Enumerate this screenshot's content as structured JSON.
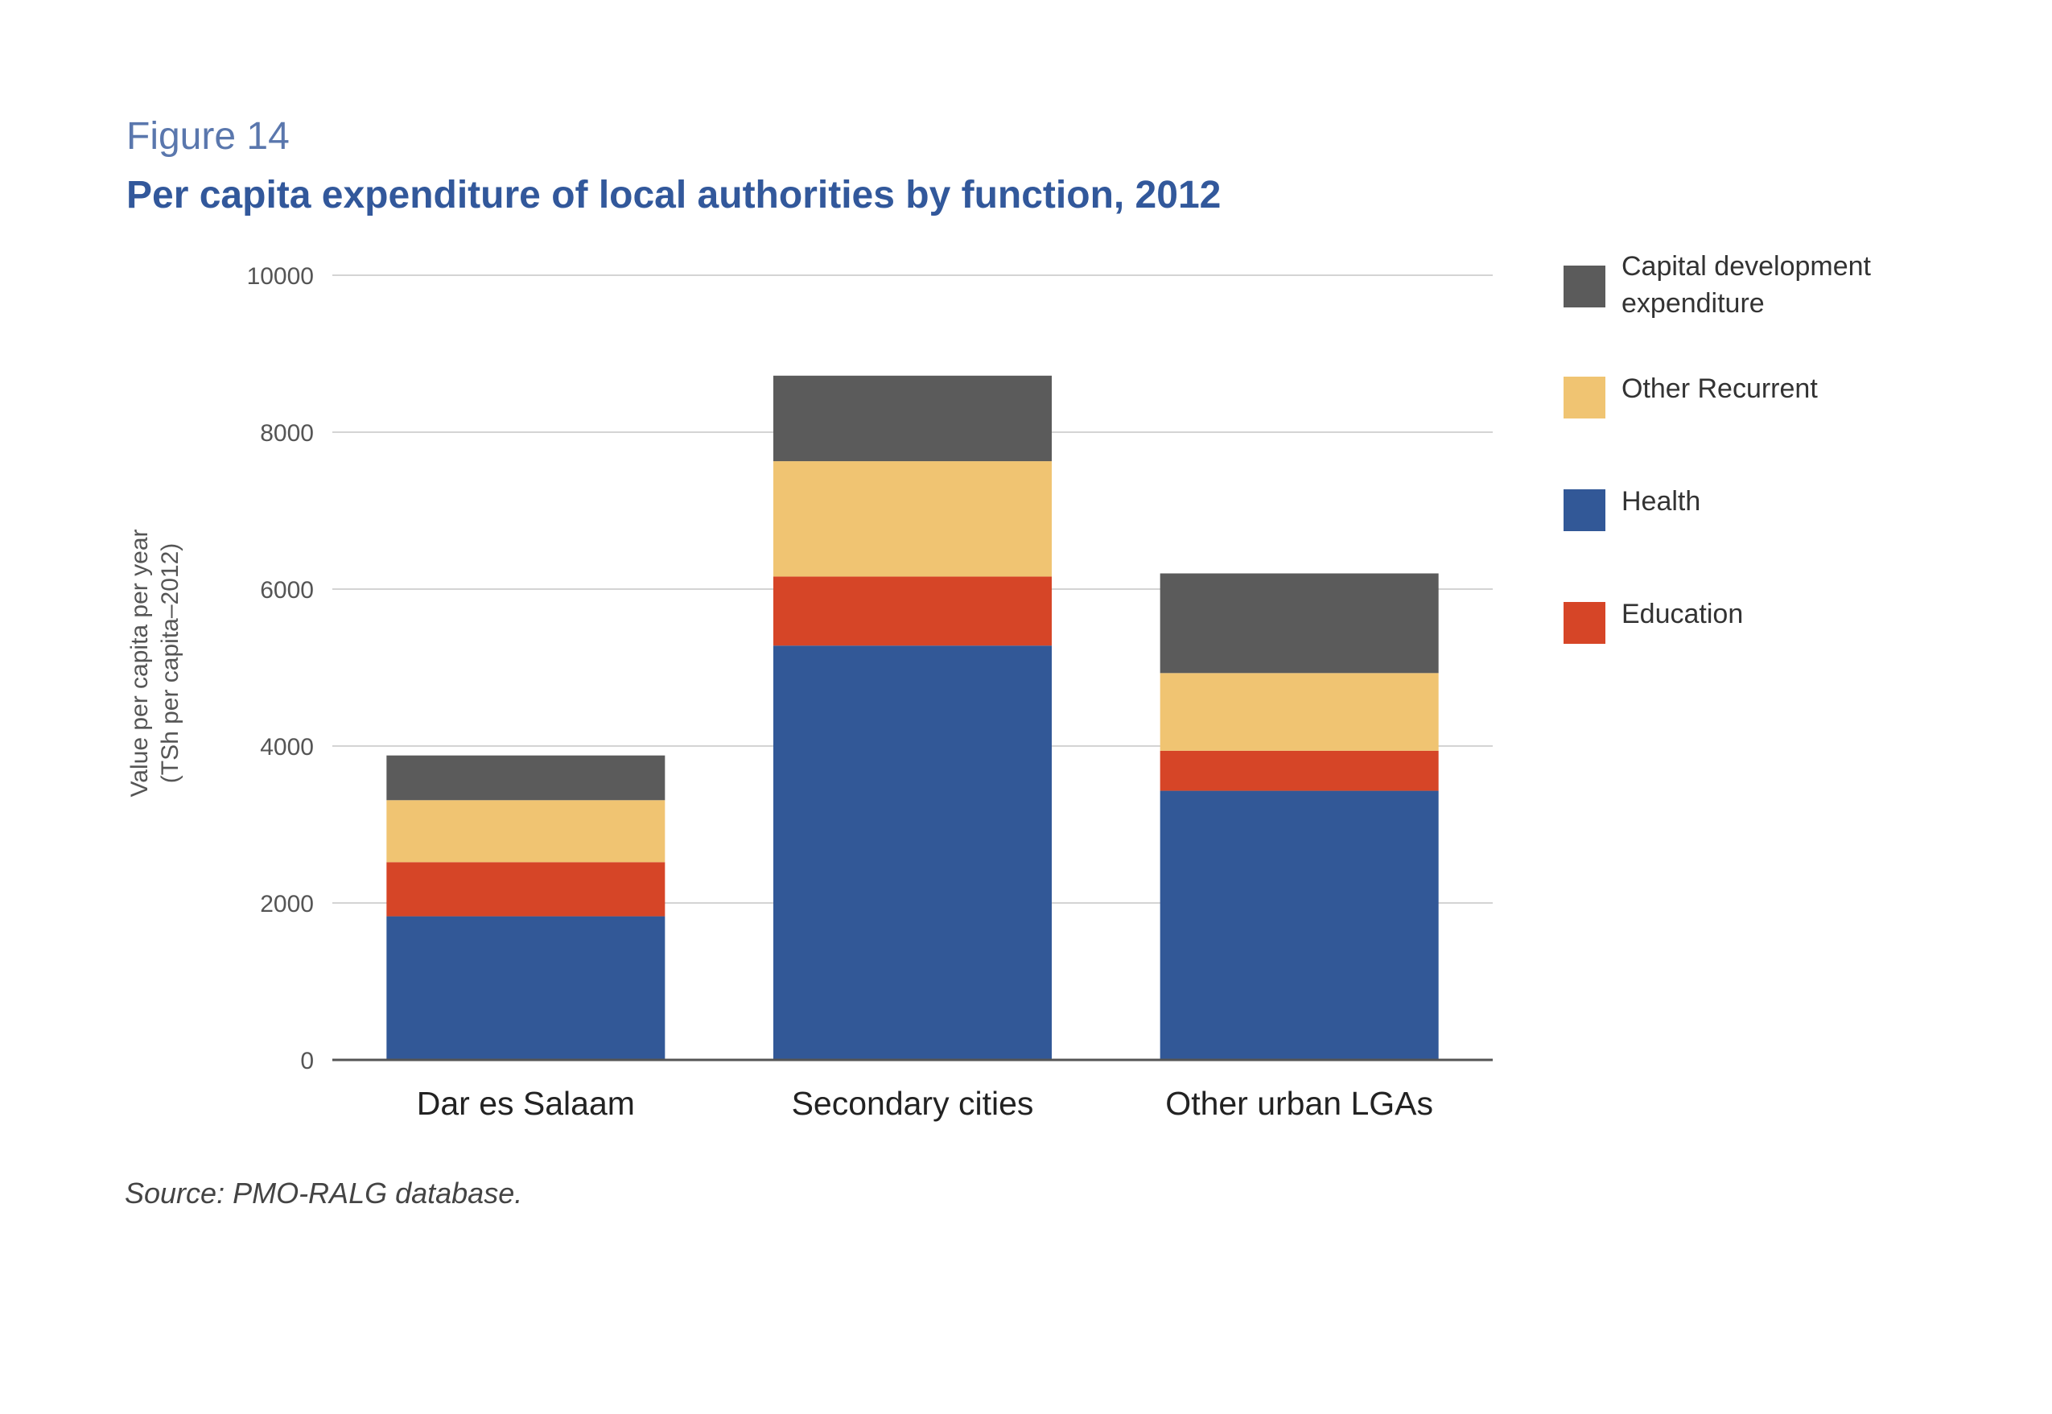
{
  "figure": {
    "label": "Figure 14",
    "title": "Per capita expenditure of local authorities by function, 2012",
    "source": "Source: PMO-RALG database."
  },
  "chart_data": {
    "type": "bar",
    "stacked": true,
    "title": "Per capita expenditure of local authorities by function, 2012",
    "xlabel": "",
    "ylabel": "Value per capita per year (TSh per capita–2012)",
    "ylabel_lines": [
      "Value per capita per year",
      "(TSh per capita–2012)"
    ],
    "ylim": [
      0,
      10000
    ],
    "yticks": [
      0,
      2000,
      4000,
      6000,
      8000,
      10000
    ],
    "grid": true,
    "legend_position": "right",
    "categories": [
      "Dar es Salaam",
      "Secondary cities",
      "Other urban LGAs"
    ],
    "series": [
      {
        "name": "Health",
        "color": "#325897",
        "values": [
          1830,
          5280,
          3430
        ]
      },
      {
        "name": "Education",
        "color": "#d64527",
        "values": [
          690,
          880,
          510
        ]
      },
      {
        "name": "Other Recurrent",
        "color": "#f0c472",
        "values": [
          790,
          1470,
          990
        ]
      },
      {
        "name": "Capital development expenditure",
        "color": "#5b5b5b",
        "values": [
          570,
          1090,
          1270
        ]
      }
    ],
    "legend_order": [
      "Capital development expenditure",
      "Other Recurrent",
      "Health",
      "Education"
    ]
  }
}
